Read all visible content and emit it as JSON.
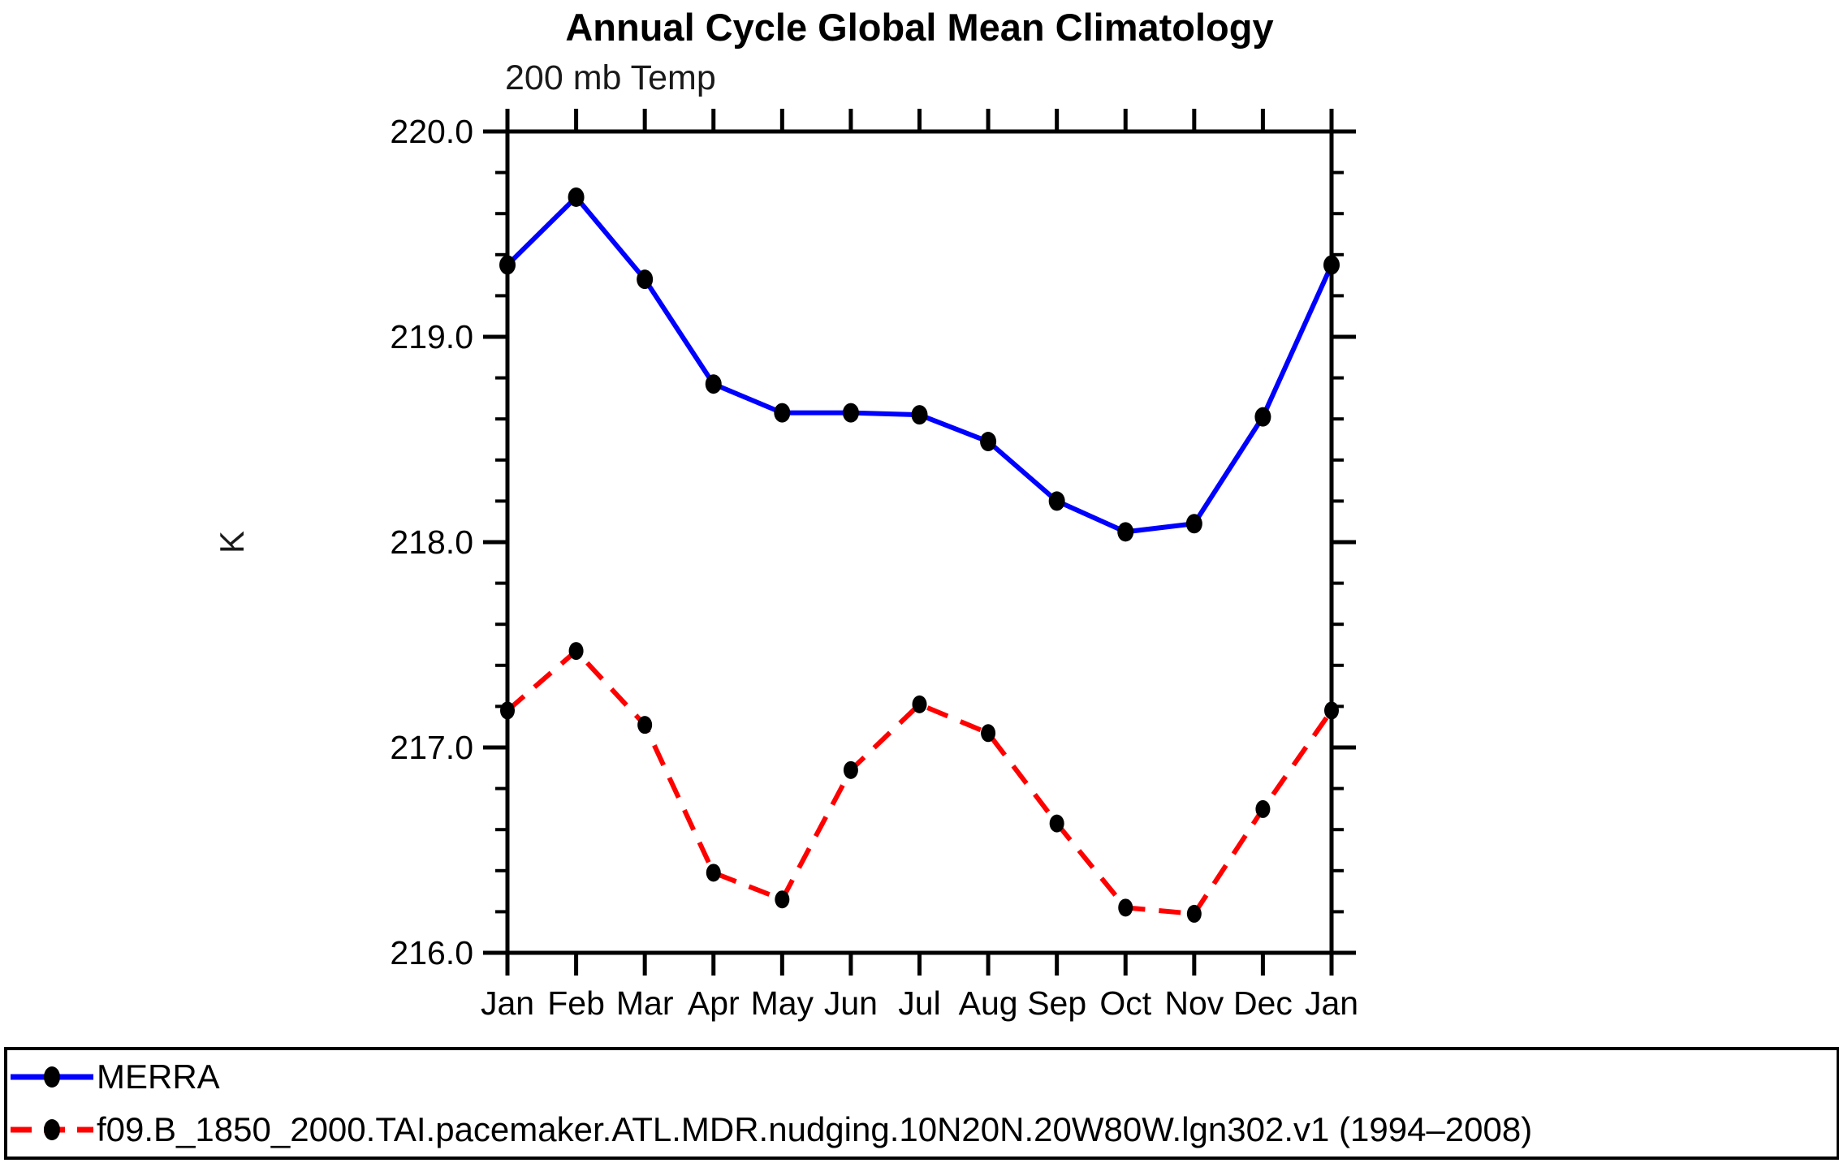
{
  "chart_data": {
    "type": "line",
    "title": "Annual Cycle Global Mean Climatology",
    "subtitle_left": "200 mb Temp",
    "ylabel": "K",
    "xlabel": "",
    "grid": false,
    "legend_position": "bottom",
    "ylim": [
      216.0,
      220.0
    ],
    "ytick_major": 1.0,
    "ytick_minor": 0.2,
    "ytick_labels": [
      "220.0",
      "219.0",
      "218.0",
      "217.0",
      "216.0"
    ],
    "categories": [
      "Jan",
      "Feb",
      "Mar",
      "Apr",
      "May",
      "Jun",
      "Jul",
      "Aug",
      "Sep",
      "Oct",
      "Nov",
      "Dec",
      "Jan"
    ],
    "series": [
      {
        "name": "MERRA",
        "color": "#0000ff",
        "style": "solid",
        "marker": "filled-circle",
        "marker_color": "#000000",
        "values": [
          219.35,
          219.68,
          219.28,
          218.77,
          218.63,
          218.63,
          218.62,
          218.49,
          218.2,
          218.05,
          218.09,
          218.61,
          219.35
        ]
      },
      {
        "name": "f09.B_1850_2000.TAI.pacemaker.ATL.MDR.nudging.10N20N.20W80W.lgn302.v1 (1994–2008)",
        "color": "#ff0000",
        "style": "dashed",
        "marker": "filled-circle",
        "marker_color": "#000000",
        "values": [
          217.18,
          217.47,
          217.11,
          216.39,
          216.26,
          216.89,
          217.21,
          217.07,
          216.63,
          216.22,
          216.19,
          216.7,
          217.18
        ]
      }
    ],
    "axis_color": "#000000",
    "text_color": "#000000"
  }
}
